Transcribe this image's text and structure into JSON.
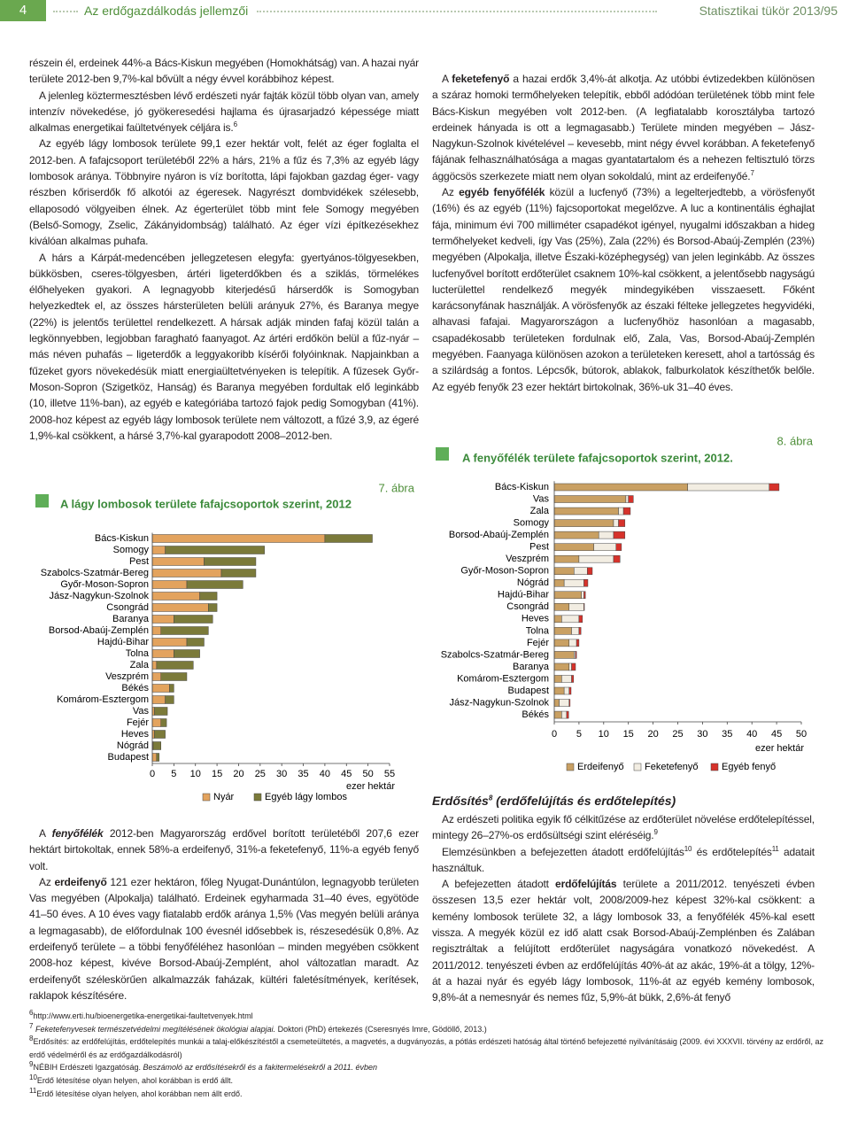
{
  "header": {
    "page_number": "4",
    "section": "Az erdőgazdálkodás jellemzői",
    "publication": "Statisztikai tükör 2013/95"
  },
  "left_column": {
    "upper": [
      [
        "részein él, erdeinek 44%-a Bács-Kiskun megyében (Homokhátság) van. A hazai nyár területe 2012-ben 9,7%-kal bővült a négy évvel korábbihoz képest."
      ],
      [
        "A jelenleg köztermesztésben lévő erdészeti nyár fajták közül több olyan van, amely intenzív növekedése, jó gyökeresedési hajlama és újrasarjadzó képessége miatt alkalmas energetikai faültetvények céljára is.",
        {
          "text": "6",
          "style": "sup"
        }
      ],
      [
        "Az egyéb lágy lombosok területe 99,1 ezer hektár volt, felét az éger foglalta el 2012-ben. A fafajcsoport területéből 22% a hárs, 21% a fűz és 7,3% az egyéb lágy lombosok aránya. Többnyire nyáron is víz borította, lápi fajokban gazdag éger- vagy részben kőriserdők fő alkotói az égeresek. Nagyrészt dombvidékek szélesebb, ellaposodó völgyeiben élnek. Az égerterület több mint fele Somogy megyében (Belső-Somogy, Zselic, Zákányidombság) található. Az éger vízi építkezésekhez kiválóan alkalmas puhafa."
      ],
      [
        "A hárs a Kárpát-medencében jellegzetesen elegyfa: gyertyános-tölgyesekben, bükkösben, cseres-tölgyesben, ártéri ligeterdőkben és a sziklás, törmelékes élőhelyeken gyakori. A legnagyobb kiterjedésű hárserdők is Somogyban helyezkedtek el, az összes hársterületen belüli arányuk 27%, és Baranya megye (22%) is jelentős területtel rendelkezett. A hársak adják minden fafaj közül talán a legkönnyebben, legjobban faragható faanyagot. Az ártéri erdőkön belül a fűz-nyár – más néven puhafás – ligeterdők a leggyakoribb kísérői folyóinknak. Napjainkban a fűzeket gyors növekedésük miatt energiaültetvényeken is telepítik. A fűzesek Győr-Moson-Sopron (Szigetköz, Hanság) és Baranya megyében fordultak elő leginkább (10, illetve 11%-ban), az egyéb e kategóriába tartozó fajok pedig Somogyban (41%). 2008-hoz képest az egyéb lágy lombosok területe nem változott, a fűzé 3,9, az égeré 1,9%-kal csökkent, a hársé 3,7%-kal gyarapodott 2008–2012-ben."
      ]
    ],
    "lower": [
      [
        "A ",
        {
          "text": "fenyőfélék",
          "style": "bold-italic"
        },
        " 2012-ben Magyarország erdővel borított területéből 207,6 ezer hektárt birtokoltak, ennek 58%-a erdeifenyő, 31%-a feketefenyő, 11%-a egyéb fenyő volt."
      ],
      [
        "Az ",
        {
          "text": "erdeifenyő",
          "style": "bold"
        },
        " 121 ezer hektáron, főleg Nyugat-Dunántúlon, legnagyobb területen Vas megyében (Alpokalja) található. Erdeinek egyharmada 31–40 éves, egyötöde 41–50 éves. A 10 éves vagy fiatalabb erdők aránya 1,5% (Vas megyén belüli aránya a legmagasabb), de előfordulnak 100 évesnél idősebbek is, részesedésük 0,8%. Az erdeifenyő területe – a többi fenyőféléhez hasonlóan – minden megyében csökkent 2008-hoz képest, kivéve Borsod-Abaúj-Zemplént, ahol változatlan maradt. Az erdeifenyőt széleskörűen alkalmazzák faházak, kültéri faletésítmények, kerítések, raklapok készítésére."
      ]
    ]
  },
  "right_column": {
    "upper": [
      [
        "A ",
        {
          "text": "feketefenyő",
          "style": "bold"
        },
        " a hazai erdők 3,4%-át alkotja. Az utóbbi évtizedekben különösen a száraz homoki termőhelyeken telepítik, ebből adódóan területének több mint fele Bács-Kiskun megyében volt 2012-ben. (A legfiatalabb korosztályba tartozó erdeinek hányada is ott a legmagasabb.) Területe minden megyében – Jász-Nagykun-Szolnok kivételével – kevesebb, mint négy évvel korábban. A feketefenyő fájának felhasználhatósága a magas gyantatartalom és a nehezen feltisztuló törzs ággöcsös szerkezete miatt nem olyan sokoldalú, mint az erdeifenyőé.",
        {
          "text": "7",
          "style": "sup"
        }
      ],
      [
        "Az ",
        {
          "text": "egyéb fenyőfélék",
          "style": "bold"
        },
        " közül a lucfenyő (73%) a legelterjedtebb, a vörösfenyőt (16%) és az egyéb (11%) fajcsoportokat megelőzve. A luc a kontinentális éghajlat fája, minimum évi 700 milliméter csapadékot igényel, nyugalmi időszakban a hideg termőhelyeket kedveli, így Vas (25%), Zala (22%) és Borsod-Abaúj-Zemplén (23%) megyében (Alpokalja, illetve Északi-középhegység) van jelen leginkább. Az összes lucfenyővel borított erdőterület csaknem 10%-kal csökkent, a jelentősebb nagyságú lucterülettel rendelkező megyék mindegyikében visszaesett. Főként karácsonyfának használják. A vörösfenyők az északi félteke jellegzetes hegyvidéki, alhavasi fafajai. Magyarországon a lucfenyőhöz hasonlóan a magasabb, csapadékosabb területeken fordulnak elő, Zala, Vas, Borsod-Abaúj-Zemplén megyében. Faanyaga különösen azokon a területeken keresett, ahol a tartósság és a szilárdság a fontos. Lépcsők, bútorok, ablakok, falburkolatok készíthetők belőle. Az egyéb fenyők 23 ezer hektárt birtokolnak, 36%-uk 31–40 éves."
      ]
    ],
    "heading": [
      "Erdősítés",
      {
        "text": "8",
        "style": "sup"
      },
      " (erdőfelújítás és erdőtelepítés)"
    ],
    "lower": [
      [
        "Az erdészeti politika egyik fő célkitűzése az erdőterület növelése erdőtelepítéssel, mintegy 26–27%-os erdősültségi szint eléréséig.",
        {
          "text": "9",
          "style": "sup"
        }
      ],
      [
        "Elemzésünkben a befejezetten átadott erdőfelújítás",
        {
          "text": "10",
          "style": "sup"
        },
        " és erdőtelepítés",
        {
          "text": "11",
          "style": "sup"
        },
        " adatait használtuk."
      ],
      [
        "A befejezetten átadott ",
        {
          "text": "erdőfelújítás",
          "style": "bold"
        },
        " területe a 2011/2012. tenyészeti évben összesen 13,5 ezer hektár volt, 2008/2009-hez képest 32%-kal csökkent: a kemény lombosok területe 32, a lágy lombosok 33, a fenyőfélék 45%-kal esett vissza. A megyék közül ez idő alatt csak Borsod-Abaúj-Zemplénben és Zalában regisztráltak a felújított erdőterület nagyságára vonatkozó növekedést. A 2011/2012. tenyészeti évben az erdőfelújítás 40%-át az akác, 19%-át a tölgy, 12%-át a hazai nyár és egyéb lágy lombosok, 11%-át az egyéb kemény lombosok, 9,8%-át a nemesnyár és nemes fűz, 5,9%-át bükk, 2,6%-át fenyő"
      ]
    ]
  },
  "chart_data": [
    {
      "type": "bar",
      "orientation": "horizontal",
      "stacked": true,
      "figure_label": "7. ábra",
      "title": "A lágy lombosok területe fafajcsoportok szerint, 2012",
      "xlabel": "ezer hektár",
      "categories": [
        "Bács-Kiskun",
        "Somogy",
        "Pest",
        "Szabolcs-Szatmár-Bereg",
        "Győr-Moson-Sopron",
        "Jász-Nagykun-Szolnok",
        "Csongrád",
        "Baranya",
        "Borsod-Abaúj-Zemplén",
        "Hajdú-Bihar",
        "Tolna",
        "Zala",
        "Veszprém",
        "Békés",
        "Komárom-Esztergom",
        "Vas",
        "Fejér",
        "Heves",
        "Nógrád",
        "Budapest"
      ],
      "series": [
        {
          "name": "Nyár",
          "color": "#e3a35e",
          "values": [
            40,
            3,
            12,
            16,
            8,
            11,
            13,
            5,
            2,
            8,
            5,
            1,
            2,
            4,
            3,
            0.5,
            2,
            0.5,
            0.2,
            1
          ]
        },
        {
          "name": "Egyéb lágy lombos",
          "color": "#7b7a3a",
          "values": [
            11,
            23,
            12,
            8,
            13,
            4,
            2,
            9,
            11,
            4,
            6,
            8.5,
            6,
            1,
            2,
            3,
            1.3,
            2.5,
            1.8,
            0.6
          ]
        }
      ],
      "xlim": [
        0,
        55
      ],
      "xticks": [
        0,
        5,
        10,
        15,
        20,
        25,
        30,
        35,
        40,
        45,
        50,
        55
      ]
    },
    {
      "type": "bar",
      "orientation": "horizontal",
      "stacked": true,
      "figure_label": "8. ábra",
      "title": "A fenyőfélék területe fafajcsoportok szerint, 2012.",
      "xlabel": "ezer hektár",
      "categories": [
        "Bács-Kiskun",
        "Vas",
        "Zala",
        "Somogy",
        "Borsod-Abaúj-Zemplén",
        "Pest",
        "Veszprém",
        "Győr-Moson-Sopron",
        "Nógrád",
        "Hajdú-Bihar",
        "Csongrád",
        "Heves",
        "Tolna",
        "Fejér",
        "Szabolcs-Szatmár-Bereg",
        "Baranya",
        "Komárom-Esztergom",
        "Budapest",
        "Jász-Nagykun-Szolnok",
        "Békés"
      ],
      "series": [
        {
          "name": "Erdeifenyő",
          "color": "#c9a063",
          "values": [
            27,
            14.5,
            13,
            12,
            9,
            8,
            5,
            4,
            2,
            5.5,
            3,
            1.5,
            3.5,
            3,
            4,
            3,
            1.5,
            2,
            1,
            1.5
          ]
        },
        {
          "name": "Feketefenyő",
          "color": "#f2ede2",
          "values": [
            16.5,
            0.5,
            1,
            1,
            3,
            4.5,
            7,
            2.7,
            4,
            0.5,
            3,
            3.5,
            1.5,
            1.5,
            0.3,
            0.5,
            2,
            1,
            2,
            1
          ]
        },
        {
          "name": "Egyéb fenyő",
          "color": "#d6322b",
          "values": [
            2,
            1,
            1.4,
            1.3,
            2.3,
            1.1,
            1.3,
            1,
            0.8,
            0.3,
            0.1,
            0.7,
            0.4,
            0.5,
            0.2,
            0.8,
            0.4,
            0.4,
            0.2,
            0.4
          ]
        }
      ],
      "xlim": [
        0,
        50
      ],
      "xticks": [
        0,
        5,
        10,
        15,
        20,
        25,
        30,
        35,
        40,
        45,
        50
      ]
    }
  ],
  "footnotes": [
    [
      {
        "text": "6",
        "style": "sup"
      },
      "http://www.erti.hu/bioenergetika-energetikai-faultetvenyek.html"
    ],
    [
      {
        "text": "7",
        "style": "sup"
      },
      {
        "text": " Feketefenyvesek természetvédelmi megítélésének ökológiai alapjai.",
        "style": "italic"
      },
      " Doktori (PhD) értekezés (Cseresnyés Imre, Gödöllő, 2013.)"
    ],
    [
      {
        "text": "8",
        "style": "sup"
      },
      "Erdősítés: az erdőfelújítás, erdőtelepítés munkái a talaj-előkészítéstől a csemeteültetés, a magvetés, a dugványozás, a pótlás erdészeti hatóság által történő befejezetté nyilvánításáig (2009. évi XXXVII. törvény az erdőről, az erdő védelméről és az erdőgazdálkodásról)"
    ],
    [
      {
        "text": "9",
        "style": "sup"
      },
      "NÉBIH Erdészeti Igazgatóság. ",
      {
        "text": "Beszámoló az erdősítésekről és a fakitermelésekről a 2011. évben",
        "style": "italic"
      }
    ],
    [
      {
        "text": "10",
        "style": "sup"
      },
      "Erdő létesítése olyan helyen, ahol korábban is erdő állt."
    ],
    [
      {
        "text": "11",
        "style": "sup"
      },
      "Erdő létesítése olyan helyen, ahol korábban nem állt erdő."
    ]
  ]
}
